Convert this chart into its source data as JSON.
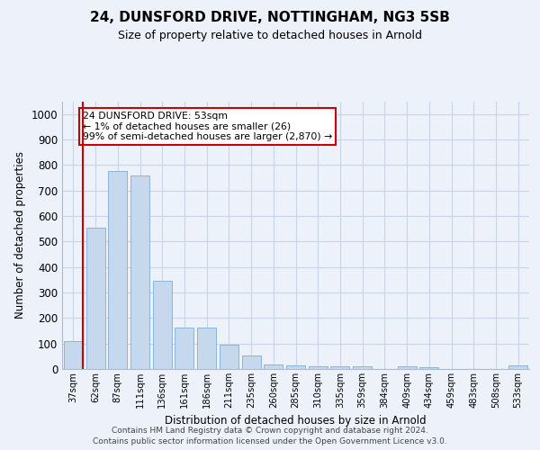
{
  "title_line1": "24, DUNSFORD DRIVE, NOTTINGHAM, NG3 5SB",
  "title_line2": "Size of property relative to detached houses in Arnold",
  "xlabel": "Distribution of detached houses by size in Arnold",
  "ylabel": "Number of detached properties",
  "categories": [
    "37sqm",
    "62sqm",
    "87sqm",
    "111sqm",
    "136sqm",
    "161sqm",
    "186sqm",
    "211sqm",
    "235sqm",
    "260sqm",
    "285sqm",
    "310sqm",
    "335sqm",
    "359sqm",
    "384sqm",
    "409sqm",
    "434sqm",
    "459sqm",
    "483sqm",
    "508sqm",
    "533sqm"
  ],
  "values": [
    110,
    555,
    775,
    760,
    345,
    163,
    163,
    95,
    52,
    18,
    13,
    12,
    10,
    10,
    0,
    10,
    7,
    0,
    0,
    0,
    13
  ],
  "bar_color": "#c5d8ed",
  "bar_edge_color": "#7bafd4",
  "highlight_color": "#cc0000",
  "annotation_text": "24 DUNSFORD DRIVE: 53sqm\n← 1% of detached houses are smaller (26)\n99% of semi-detached houses are larger (2,870) →",
  "annotation_box_color": "#ffffff",
  "annotation_box_edge_color": "#cc0000",
  "ylim": [
    0,
    1050
  ],
  "yticks": [
    0,
    100,
    200,
    300,
    400,
    500,
    600,
    700,
    800,
    900,
    1000
  ],
  "grid_color": "#c8d4e8",
  "footer_line1": "Contains HM Land Registry data © Crown copyright and database right 2024.",
  "footer_line2": "Contains public sector information licensed under the Open Government Licence v3.0.",
  "bg_color": "#edf2fa"
}
